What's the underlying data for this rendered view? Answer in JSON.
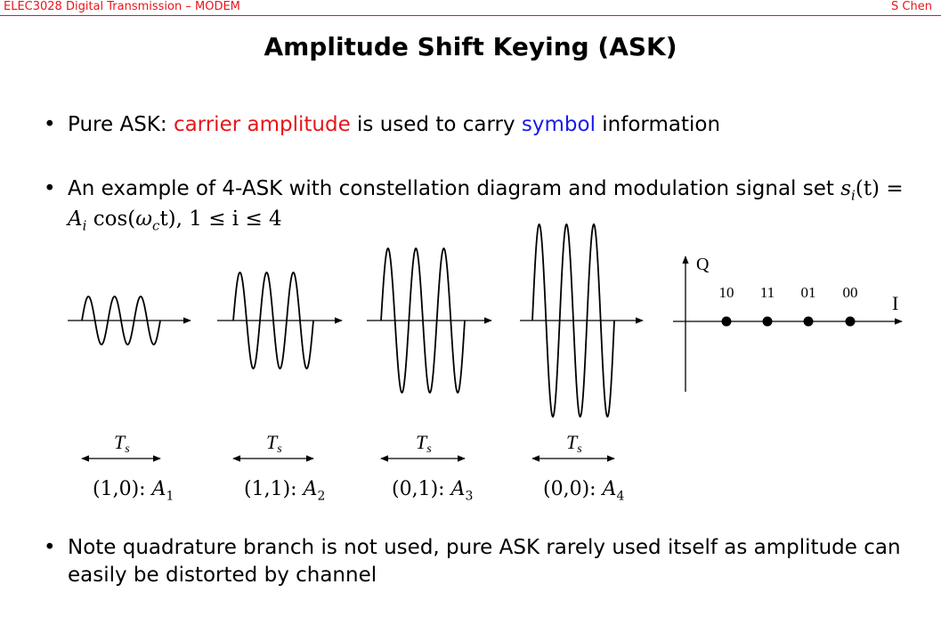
{
  "header": {
    "left": "ELEC3028 Digital Transmission – MODEM",
    "right": "S Chen"
  },
  "title": "Amplitude Shift Keying (ASK)",
  "bullets": {
    "b1": {
      "prefix": "Pure ASK: ",
      "red": "carrier amplitude",
      "mid": " is used to carry ",
      "blue": "symbol",
      "suffix": " information"
    },
    "b2": {
      "line1": "An example of 4-ASK with constellation diagram and modulation signal set ",
      "eq1": "s",
      "eq1sub": "i",
      "eq1rest": "(t) =",
      "line2_A": "A",
      "line2_Asub": "i",
      "line2_cos": " cos(",
      "line2_w": "ω",
      "line2_wsub": "c",
      "line2_t": "t), 1 ≤ i ≤ 4"
    },
    "b3": {
      "text": "Note quadrature branch is not used, pure ASK rarely used itself as amplitude can easily be distorted by channel"
    }
  },
  "figure": {
    "symbol_period_label": "T",
    "symbol_period_sub": "s",
    "waveforms": [
      {
        "bits": "(1,0):",
        "amp": "A",
        "sub": "1",
        "level": 1
      },
      {
        "bits": "(1,1):",
        "amp": "A",
        "sub": "2",
        "level": 2
      },
      {
        "bits": "(0,1):",
        "amp": "A",
        "sub": "3",
        "level": 3
      },
      {
        "bits": "(0,0):",
        "amp": "A",
        "sub": "4",
        "level": 4
      }
    ],
    "constellation": {
      "q_label": "Q",
      "i_label": "I",
      "points": [
        "10",
        "11",
        "01",
        "00"
      ]
    }
  }
}
